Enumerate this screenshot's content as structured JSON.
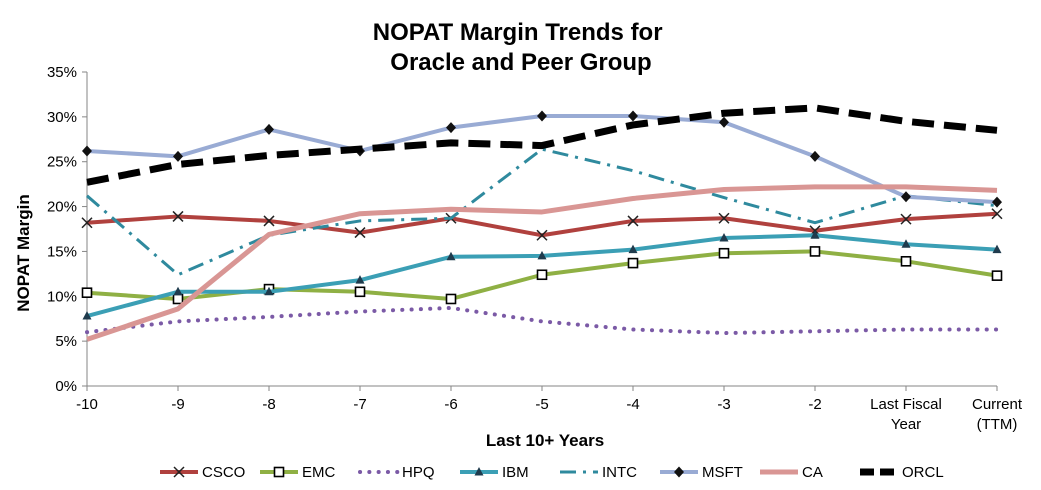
{
  "chart_data": {
    "type": "line",
    "title_lines": [
      "NOPAT Margin Trends for",
      "Oracle and Peer Group"
    ],
    "xlabel": "Last 10+ Years",
    "ylabel": "NOPAT Margin",
    "categories": [
      [
        "-10"
      ],
      [
        "-9"
      ],
      [
        "-8"
      ],
      [
        "-7"
      ],
      [
        "-6"
      ],
      [
        "-5"
      ],
      [
        "-4"
      ],
      [
        "-3"
      ],
      [
        "-2"
      ],
      [
        "Last Fiscal",
        "Year"
      ],
      [
        "Current",
        "(TTM)"
      ]
    ],
    "ylim": [
      0,
      35
    ],
    "yticks": [
      0,
      5,
      10,
      15,
      20,
      25,
      30,
      35
    ],
    "ytick_labels": [
      "0%",
      "5%",
      "10%",
      "15%",
      "20%",
      "25%",
      "30%",
      "35%"
    ],
    "grid": false,
    "legend_position": "bottom",
    "series": [
      {
        "name": "CSCO",
        "color": "#b0413e",
        "marker": "x",
        "dash": "",
        "width": 4,
        "values": [
          18.2,
          18.9,
          18.4,
          17.1,
          18.7,
          16.8,
          18.4,
          18.7,
          17.3,
          18.6,
          19.2
        ]
      },
      {
        "name": "EMC",
        "color": "#8fb044",
        "marker": "square",
        "dash": "",
        "width": 4,
        "values": [
          10.4,
          9.7,
          10.8,
          10.5,
          9.7,
          12.4,
          13.7,
          14.8,
          15.0,
          13.9,
          12.3
        ]
      },
      {
        "name": "HPQ",
        "color": "#7b5aa6",
        "marker": "none",
        "dash": "dot",
        "width": 4,
        "values": [
          6.0,
          7.2,
          7.7,
          8.3,
          8.7,
          7.2,
          6.3,
          5.9,
          6.1,
          6.3,
          6.3
        ]
      },
      {
        "name": "IBM",
        "color": "#3b9fb5",
        "marker": "triangle",
        "dash": "",
        "width": 4,
        "values": [
          7.8,
          10.5,
          10.5,
          11.8,
          14.4,
          14.5,
          15.2,
          16.5,
          16.8,
          15.8,
          15.2
        ]
      },
      {
        "name": "INTC",
        "color": "#2f8a9e",
        "marker": "none",
        "dash": "dashdot",
        "width": 3,
        "values": [
          21.2,
          12.4,
          16.8,
          18.4,
          18.7,
          26.4,
          24.0,
          21.0,
          18.2,
          21.2,
          20.1
        ]
      },
      {
        "name": "MSFT",
        "color": "#99abd4",
        "marker": "diamond",
        "dash": "",
        "width": 4,
        "values": [
          26.2,
          25.6,
          28.6,
          26.2,
          28.8,
          30.1,
          30.1,
          29.4,
          25.6,
          21.1,
          20.5
        ]
      },
      {
        "name": "CA",
        "color": "#d99694",
        "marker": "none",
        "dash": "",
        "width": 5,
        "values": [
          5.2,
          8.6,
          16.9,
          19.2,
          19.7,
          19.4,
          20.9,
          21.9,
          22.2,
          22.2,
          21.8
        ]
      },
      {
        "name": "ORCL",
        "color": "#000000",
        "marker": "none",
        "dash": "dash",
        "width": 7,
        "values": [
          22.7,
          24.7,
          25.7,
          26.4,
          27.1,
          26.8,
          29.1,
          30.4,
          31.0,
          29.5,
          28.5
        ]
      }
    ]
  }
}
